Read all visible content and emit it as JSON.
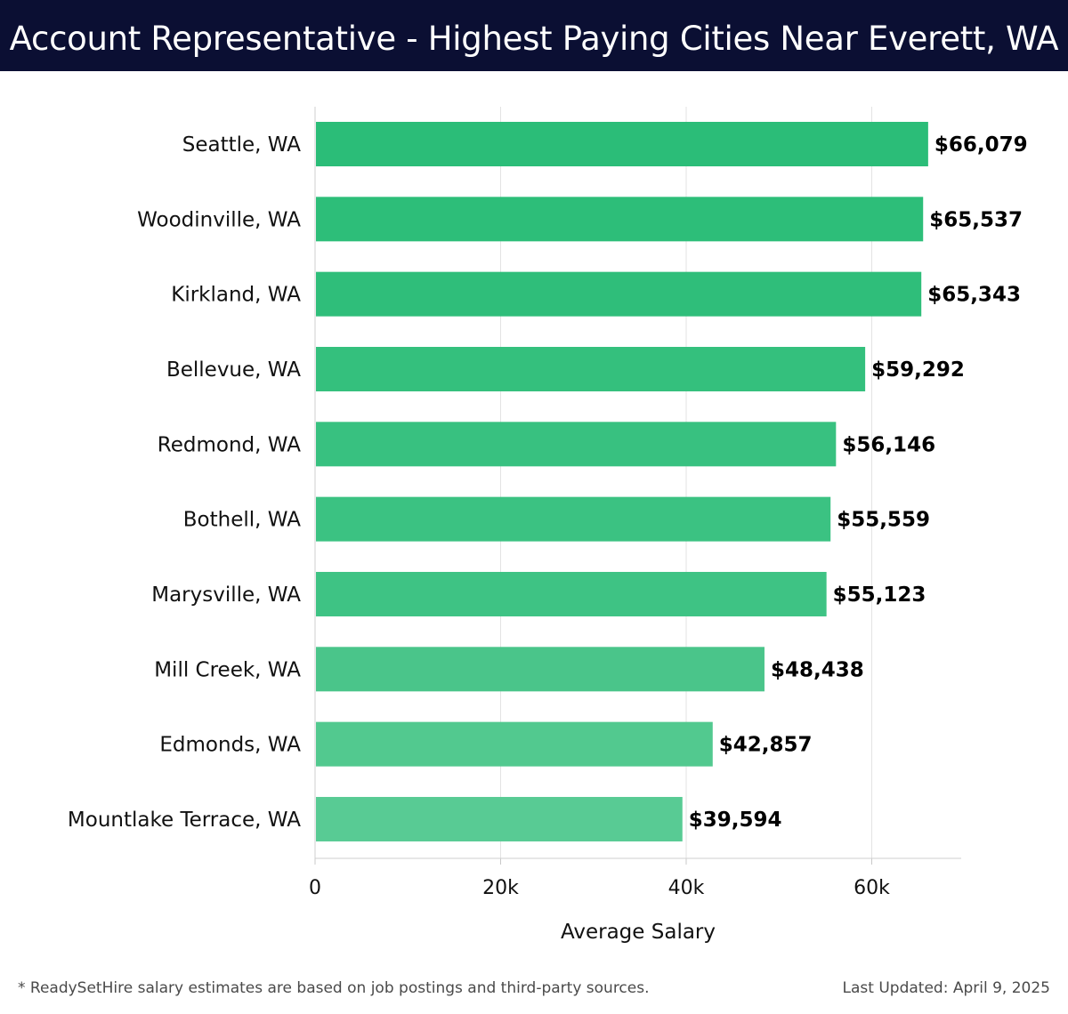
{
  "header": {
    "title": "Account Representative - Highest Paying Cities Near Everett, WA"
  },
  "chart_data": {
    "type": "bar",
    "orientation": "horizontal",
    "title": "Account Representative - Highest Paying Cities Near Everett, WA",
    "xlabel": "Average Salary",
    "ylabel": "",
    "xlim": [
      0,
      70000
    ],
    "grid": true,
    "categories": [
      "Seattle, WA",
      "Woodinville, WA",
      "Kirkland, WA",
      "Bellevue, WA",
      "Redmond, WA",
      "Bothell, WA",
      "Marysville, WA",
      "Mill Creek, WA",
      "Edmonds, WA",
      "Mountlake Terrace, WA"
    ],
    "values": [
      66079,
      65537,
      65343,
      59292,
      56146,
      55559,
      55123,
      48438,
      42857,
      39594
    ],
    "value_labels": [
      "$66,079",
      "$65,537",
      "$65,343",
      "$59,292",
      "$56,146",
      "$55,559",
      "$55,123",
      "$48,438",
      "$42,857",
      "$39,594"
    ],
    "x_ticks": [
      0,
      20000,
      40000,
      60000
    ],
    "x_tick_labels": [
      "0",
      "20k",
      "40k",
      "60k"
    ],
    "bar_colors": [
      "#2bbd78",
      "#2dbe79",
      "#2fbe7a",
      "#34c07d",
      "#38c180",
      "#3bc282",
      "#3ec384",
      "#4ac58a",
      "#52c98f",
      "#58cb94"
    ]
  },
  "footer": {
    "note": "* ReadySetHire salary estimates are based on job postings and third-party sources.",
    "updated": "Last Updated: April 9, 2025"
  }
}
